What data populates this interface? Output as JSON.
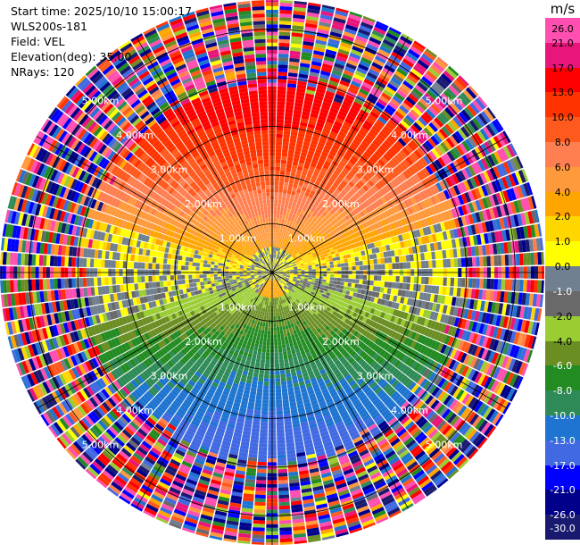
{
  "info": {
    "start_time": "Start time: 2025/10/10 15:00:17",
    "instrument": "WLS200s-181",
    "field": "Field: VEL",
    "elevation": "Elevation(deg): 35.00",
    "nrays": "NRays: 120"
  },
  "chart_data": {
    "type": "heatmap",
    "projection": "PPI (plan position indicator)",
    "field": "VEL",
    "unit": "m/s",
    "elevation_deg": 35.0,
    "n_rays": 120,
    "range_rings_km": [
      1.0,
      2.0,
      3.0,
      4.0,
      5.0
    ],
    "ring_labels": [
      "1.00km",
      "2.00km",
      "3.00km",
      "4.00km",
      "5.00km"
    ],
    "colorbar": {
      "tick_labels": [
        "26.0",
        "21.0",
        "17.0",
        "13.0",
        "10.0",
        "8.0",
        "6.0",
        "4.0",
        "2.0",
        "1.0",
        "0.0",
        "-1.0",
        "-2.0",
        "-4.0",
        "-6.0",
        "-8.0",
        "-10.0",
        "-13.0",
        "-17.0",
        "-21.0",
        "-26.0",
        "-30.0"
      ],
      "colors": [
        "#ff4fb0",
        "#e8157a",
        "#ff0000",
        "#ff3300",
        "#ff5a1e",
        "#ff7f50",
        "#ff9a3c",
        "#ffa500",
        "#ffd700",
        "#ffff00",
        "#708090",
        "#696969",
        "#9acd32",
        "#6b8e23",
        "#228b22",
        "#2e8b57",
        "#1e74d0",
        "#4169e1",
        "#0000ff",
        "#00008b",
        "#191970"
      ]
    },
    "pattern_summary": {
      "inner_core_radius_km": 0.55,
      "positive_velocity_sector": "north (upper half)",
      "negative_velocity_sector": "south (lower half)",
      "noise_begins_km": 3.9
    }
  }
}
